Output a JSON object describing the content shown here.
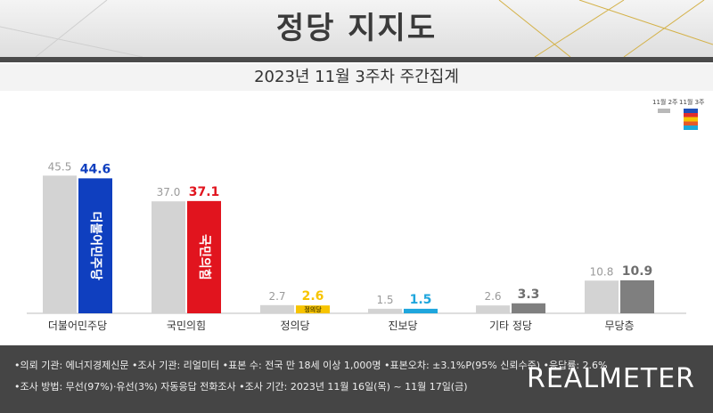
{
  "header": {
    "title": "정당 지지도",
    "subtitle": "2023년 11월 3주차 주간집계"
  },
  "legend": {
    "prev": "11월 2주",
    "curr": "11월 3주"
  },
  "colors": {
    "prev": "#d3d3d3",
    "other": "#7f7f7f",
    "minjoo": "#0f3fbf",
    "ppp": "#e1141e",
    "justice": "#f7c400",
    "progressive": "#1ea6dd"
  },
  "chart_data": {
    "type": "bar",
    "categories": [
      "더불어민주당",
      "국민의힘",
      "정의당",
      "진보당",
      "기타 정당",
      "무당층"
    ],
    "series": [
      {
        "name": "11월 2주",
        "values": [
          45.5,
          37.0,
          2.7,
          1.5,
          2.6,
          10.8
        ]
      },
      {
        "name": "11월 3주",
        "values": [
          44.6,
          37.1,
          2.6,
          1.5,
          3.3,
          10.9
        ]
      }
    ],
    "bar_logos": [
      "더불어민주당",
      "국민의힘",
      "정의당",
      "",
      "",
      ""
    ],
    "ylim": [
      0,
      50
    ]
  },
  "footer": {
    "line1": "•의뢰 기관: 에너지경제신문  •조사 기관: 리얼미터 •표본 수: 전국 만 18세 이상 1,000명 •표본오차: ±3.1%P(95% 신뢰수준) •응답률: 2.6%",
    "line2": "•조사 방법: 무선(97%)·유선(3%) 자동응답 전화조사 •조사 기간: 2023년 11월 16일(목) ~ 11월 17일(금)",
    "brand": "REALMETER"
  }
}
